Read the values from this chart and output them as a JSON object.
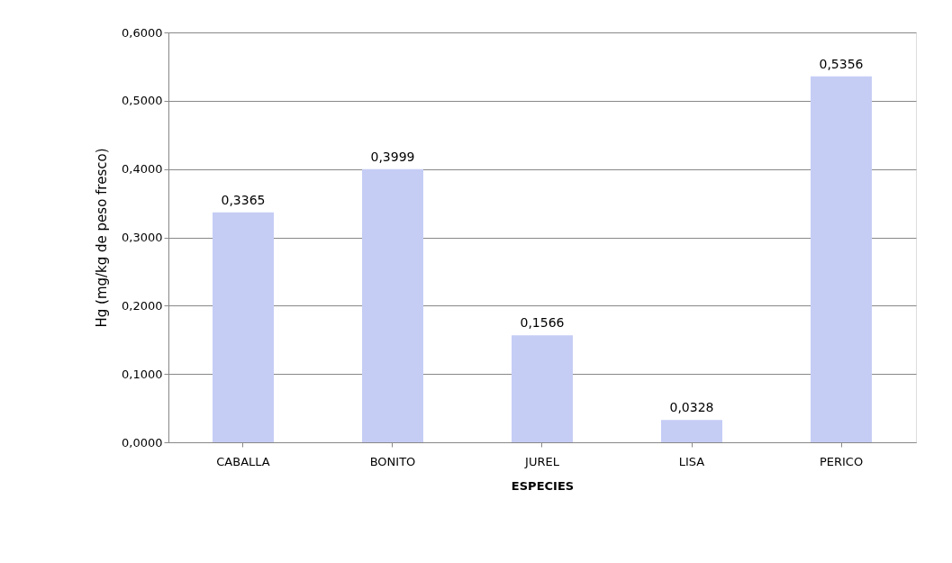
{
  "chart_data": {
    "type": "bar",
    "xlabel": "ESPECIES",
    "ylabel": "Hg (mg/kg de peso fresco)",
    "categories": [
      "CABALLA",
      "BONITO",
      "JUREL",
      "LISA",
      "PERICO"
    ],
    "values": [
      0.3365,
      0.3999,
      0.1566,
      0.0328,
      0.5356
    ],
    "value_labels": [
      "0,3365",
      "0,3999",
      "0,1566",
      "0,0328",
      "0,5356"
    ],
    "color": "#c5cdf5",
    "ylim": [
      0,
      0.6
    ],
    "yticks": [
      {
        "value": 0,
        "label": "0,0000"
      },
      {
        "value": 0.1,
        "label": "0,1000"
      },
      {
        "value": 0.2,
        "label": "0,2000"
      },
      {
        "value": 0.3,
        "label": "0,3000"
      },
      {
        "value": 0.4,
        "label": "0,4000"
      },
      {
        "value": 0.5,
        "label": "0,5000"
      },
      {
        "value": 0.6,
        "label": "0,6000"
      }
    ],
    "grid": "y"
  }
}
